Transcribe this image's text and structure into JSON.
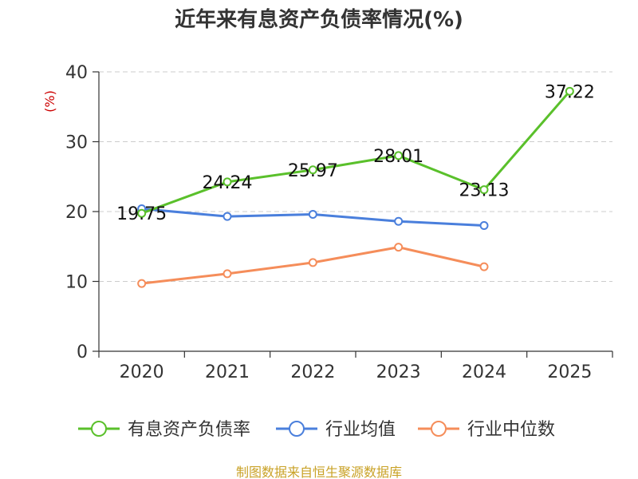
{
  "colors": {
    "series_0": "#5ac02b",
    "series_1": "#4a7fdc",
    "series_2": "#f58d5a",
    "ylabel": "#cc0000",
    "source": "#c9a227"
  },
  "chart_data": {
    "type": "line",
    "title": "近年来有息资产负债率情况(%)",
    "ylabel": "(%)",
    "xlabel": "",
    "categories": [
      "2020",
      "2021",
      "2022",
      "2023",
      "2024",
      "2025"
    ],
    "ylim": [
      0,
      40
    ],
    "yticks": [
      0,
      10,
      20,
      30,
      40
    ],
    "grid": true,
    "legend_position": "bottom",
    "series": [
      {
        "name": "有息资产负债率",
        "values": [
          19.75,
          24.24,
          25.97,
          28.01,
          23.13,
          37.22
        ],
        "show_labels": true
      },
      {
        "name": "行业均值",
        "values": [
          20.4,
          19.3,
          19.6,
          18.6,
          18.0,
          null
        ],
        "show_labels": false
      },
      {
        "name": "行业中位数",
        "values": [
          9.7,
          11.1,
          12.7,
          14.9,
          12.1,
          null
        ],
        "show_labels": false
      }
    ]
  },
  "source_text": "制图数据来自恒生聚源数据库"
}
